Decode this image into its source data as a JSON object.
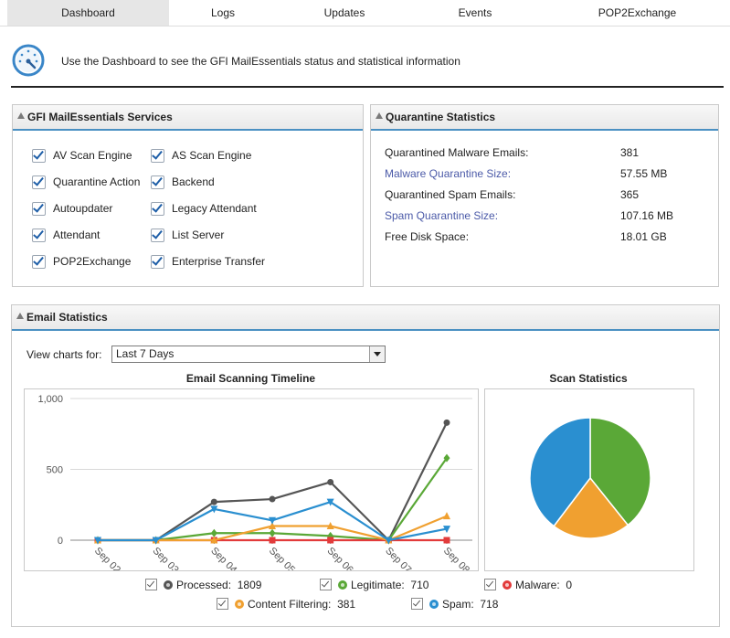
{
  "tabs": [
    {
      "label": "Dashboard",
      "active": true
    },
    {
      "label": "Logs",
      "active": false
    },
    {
      "label": "Updates",
      "active": false
    },
    {
      "label": "Events",
      "active": false
    },
    {
      "label": "POP2Exchange",
      "active": false
    }
  ],
  "intro": {
    "icon": "gauge-icon",
    "text": "Use the Dashboard to see the GFI MailEssentials status and statistical information"
  },
  "services": {
    "title": "GFI MailEssentials Services",
    "items": [
      {
        "label": "AV Scan Engine",
        "checked": true
      },
      {
        "label": "AS Scan Engine",
        "checked": true
      },
      {
        "label": "Quarantine Action",
        "checked": true
      },
      {
        "label": "Backend",
        "checked": true
      },
      {
        "label": "Autoupdater",
        "checked": true
      },
      {
        "label": "Legacy Attendant",
        "checked": true
      },
      {
        "label": "Attendant",
        "checked": true
      },
      {
        "label": "List Server",
        "checked": true
      },
      {
        "label": "POP2Exchange",
        "checked": true
      },
      {
        "label": "Enterprise Transfer",
        "checked": true
      }
    ]
  },
  "quarantine": {
    "title": "Quarantine Statistics",
    "rows": [
      {
        "label": "Quarantined Malware Emails:",
        "value": "381",
        "link": false
      },
      {
        "label": "Malware Quarantine Size:",
        "value": "57.55 MB",
        "link": true
      },
      {
        "label": "Quarantined Spam Emails:",
        "value": "365",
        "link": false
      },
      {
        "label": "Spam Quarantine Size:",
        "value": "107.16 MB",
        "link": true
      },
      {
        "label": "Free Disk Space:",
        "value": "18.01 GB",
        "link": false
      }
    ]
  },
  "email_stats": {
    "title": "Email Statistics",
    "view_label": "View charts for:",
    "view_value": "Last 7 Days",
    "timeline_title": "Email Scanning Timeline",
    "pie_title": "Scan Statistics",
    "legend": [
      {
        "name": "Processed",
        "value": "1809",
        "color": "#555555",
        "checked": true
      },
      {
        "name": "Legitimate",
        "value": "710",
        "color": "#5aa837",
        "checked": true
      },
      {
        "name": "Malware",
        "value": "0",
        "color": "#e23b3b",
        "checked": true
      },
      {
        "name": "Content Filtering",
        "value": "381",
        "color": "#f0a030",
        "checked": true
      },
      {
        "name": "Spam",
        "value": "718",
        "color": "#2a8fd0",
        "checked": true
      }
    ]
  },
  "chart_data": [
    {
      "type": "line",
      "title": "Email Scanning Timeline",
      "x": [
        "Sep 02",
        "Sep 03",
        "Sep 04",
        "Sep 05",
        "Sep 06",
        "Sep 07",
        "Sep 08"
      ],
      "y_ticks": [
        "0",
        "500",
        "1,000"
      ],
      "ylim": [
        0,
        1000
      ],
      "grid": true,
      "series": [
        {
          "name": "Processed",
          "color": "#555555",
          "marker": "circle",
          "values": [
            0,
            0,
            270,
            290,
            410,
            0,
            830
          ]
        },
        {
          "name": "Legitimate",
          "color": "#5aa837",
          "marker": "diamond",
          "values": [
            0,
            0,
            50,
            50,
            30,
            0,
            580
          ]
        },
        {
          "name": "Malware",
          "color": "#e23b3b",
          "marker": "square",
          "values": [
            0,
            0,
            0,
            0,
            0,
            0,
            0
          ]
        },
        {
          "name": "Content Filtering",
          "color": "#f0a030",
          "marker": "triangle",
          "values": [
            0,
            0,
            0,
            100,
            100,
            0,
            170
          ]
        },
        {
          "name": "Spam",
          "color": "#2a8fd0",
          "marker": "triangle-down",
          "values": [
            0,
            0,
            220,
            140,
            270,
            0,
            80
          ]
        }
      ]
    },
    {
      "type": "pie",
      "title": "Scan Statistics",
      "categories": [
        "Legitimate",
        "Content Filtering",
        "Spam",
        "Malware"
      ],
      "values": [
        710,
        381,
        718,
        0
      ],
      "colors": [
        "#5aa837",
        "#f0a030",
        "#2a8fd0",
        "#e23b3b"
      ]
    }
  ]
}
